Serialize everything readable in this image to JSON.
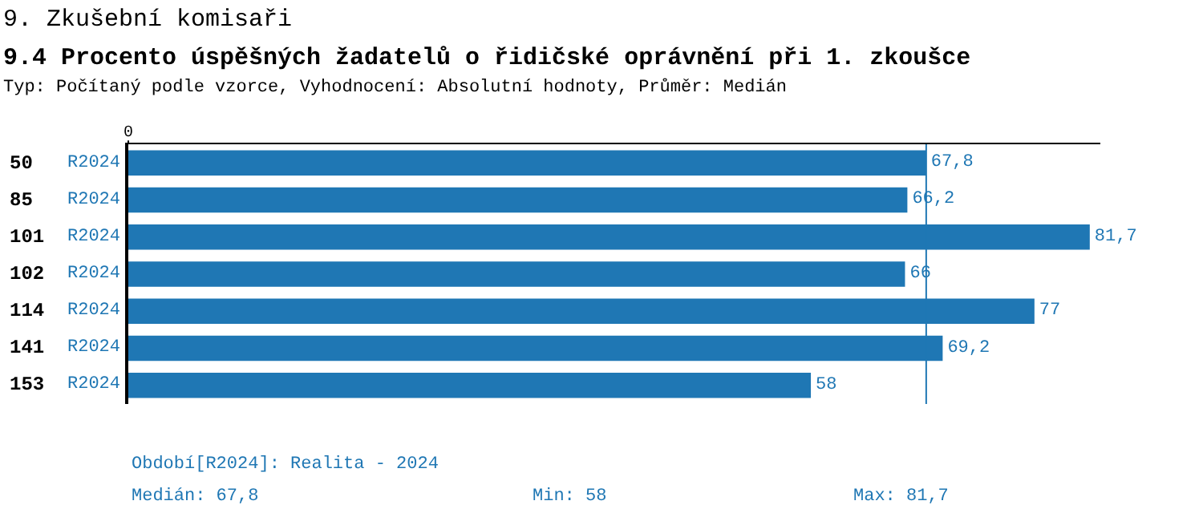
{
  "chart_data": {
    "type": "bar",
    "orientation": "horizontal",
    "title": "9. Zkušební komisaři",
    "subtitle": "9.4 Procento úspěšných žadatelů o řidičské oprávnění při 1. zkoušce",
    "categories": [
      "50",
      "85",
      "101",
      "102",
      "114",
      "141",
      "153"
    ],
    "series": [
      {
        "name": "R2024",
        "color": "#1f77b4",
        "values": [
          67.8,
          66.2,
          81.7,
          66,
          77,
          69.2,
          58
        ],
        "value_labels": [
          "67,8",
          "66,2",
          "81,7",
          "66",
          "77",
          "69,2",
          "58"
        ]
      }
    ],
    "legend": false,
    "ref_lines": [
      {
        "axis": "x",
        "value": 67.8,
        "color": "#1f77b4"
      }
    ],
    "annotations": [
      "0",
      "Typ: Počítaný podle vzorce, Vyhodnocení: Absolutní hodnoty, Průměr: Medián",
      "Období[R2024]: Realita - 2024",
      "Medián: 67,8",
      "Min: 58",
      "Max: 81,7"
    ]
  }
}
